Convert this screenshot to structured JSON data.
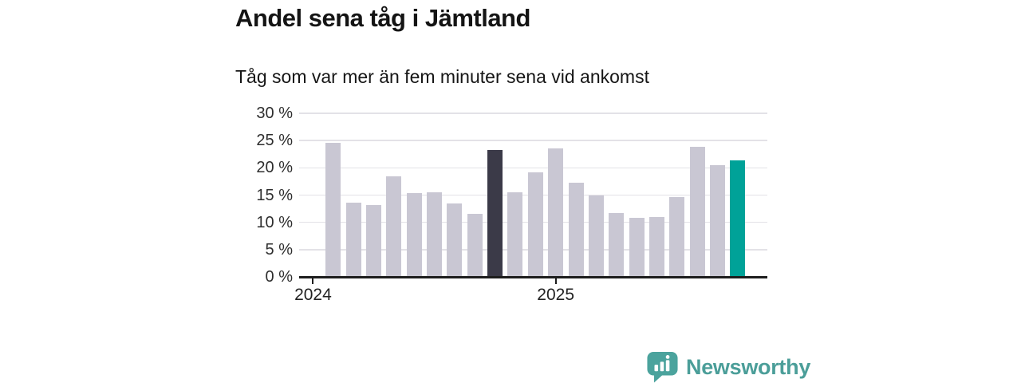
{
  "chart_data": {
    "type": "bar",
    "title": "Andel sena tåg i Jämtland",
    "subtitle": "Tåg som var mer än fem minuter sena vid ankomst",
    "unit": "%",
    "categories": [
      "2024-02",
      "2024-03",
      "2024-04",
      "2024-05",
      "2024-06",
      "2024-07",
      "2024-08",
      "2024-09",
      "2024-10",
      "2024-11",
      "2024-12",
      "2025-01",
      "2025-02",
      "2025-03",
      "2025-04",
      "2025-05",
      "2025-06",
      "2025-07",
      "2025-08",
      "2025-09",
      "2025-10"
    ],
    "values": [
      24.6,
      13.6,
      13.2,
      18.5,
      15.4,
      15.5,
      13.5,
      11.5,
      23.3,
      15.5,
      19.2,
      23.5,
      17.2,
      15.0,
      11.7,
      10.8,
      11.0,
      14.6,
      23.8,
      20.5,
      21.3
    ],
    "ylim": [
      0,
      30
    ],
    "y_tick_step": 5,
    "y_tick_labels": [
      "0 %",
      "5 %",
      "10 %",
      "15 %",
      "20 %",
      "25 %",
      "30 %"
    ],
    "x_year_ticks": [
      {
        "label": "2024",
        "month_index": -1
      },
      {
        "label": "2025",
        "month_index": 11
      }
    ],
    "grid": "horizontal",
    "legend": "none",
    "highlights": {
      "dark_bar_index": 8,
      "accent_bar_index": 20
    },
    "colors": {
      "bar_default": "#c9c7d3",
      "bar_dark": "#3b3a48",
      "bar_accent": "#00a298",
      "axis_line": "#1d1d1d",
      "grid_line": "#e3e2e7",
      "tick_text": "#2e2e2e"
    }
  },
  "branding": {
    "name": "Newsworthy",
    "icon": "newsworthy-logo-icon",
    "icon_color": "#4ba39d",
    "text_color": "#4b9e99"
  }
}
